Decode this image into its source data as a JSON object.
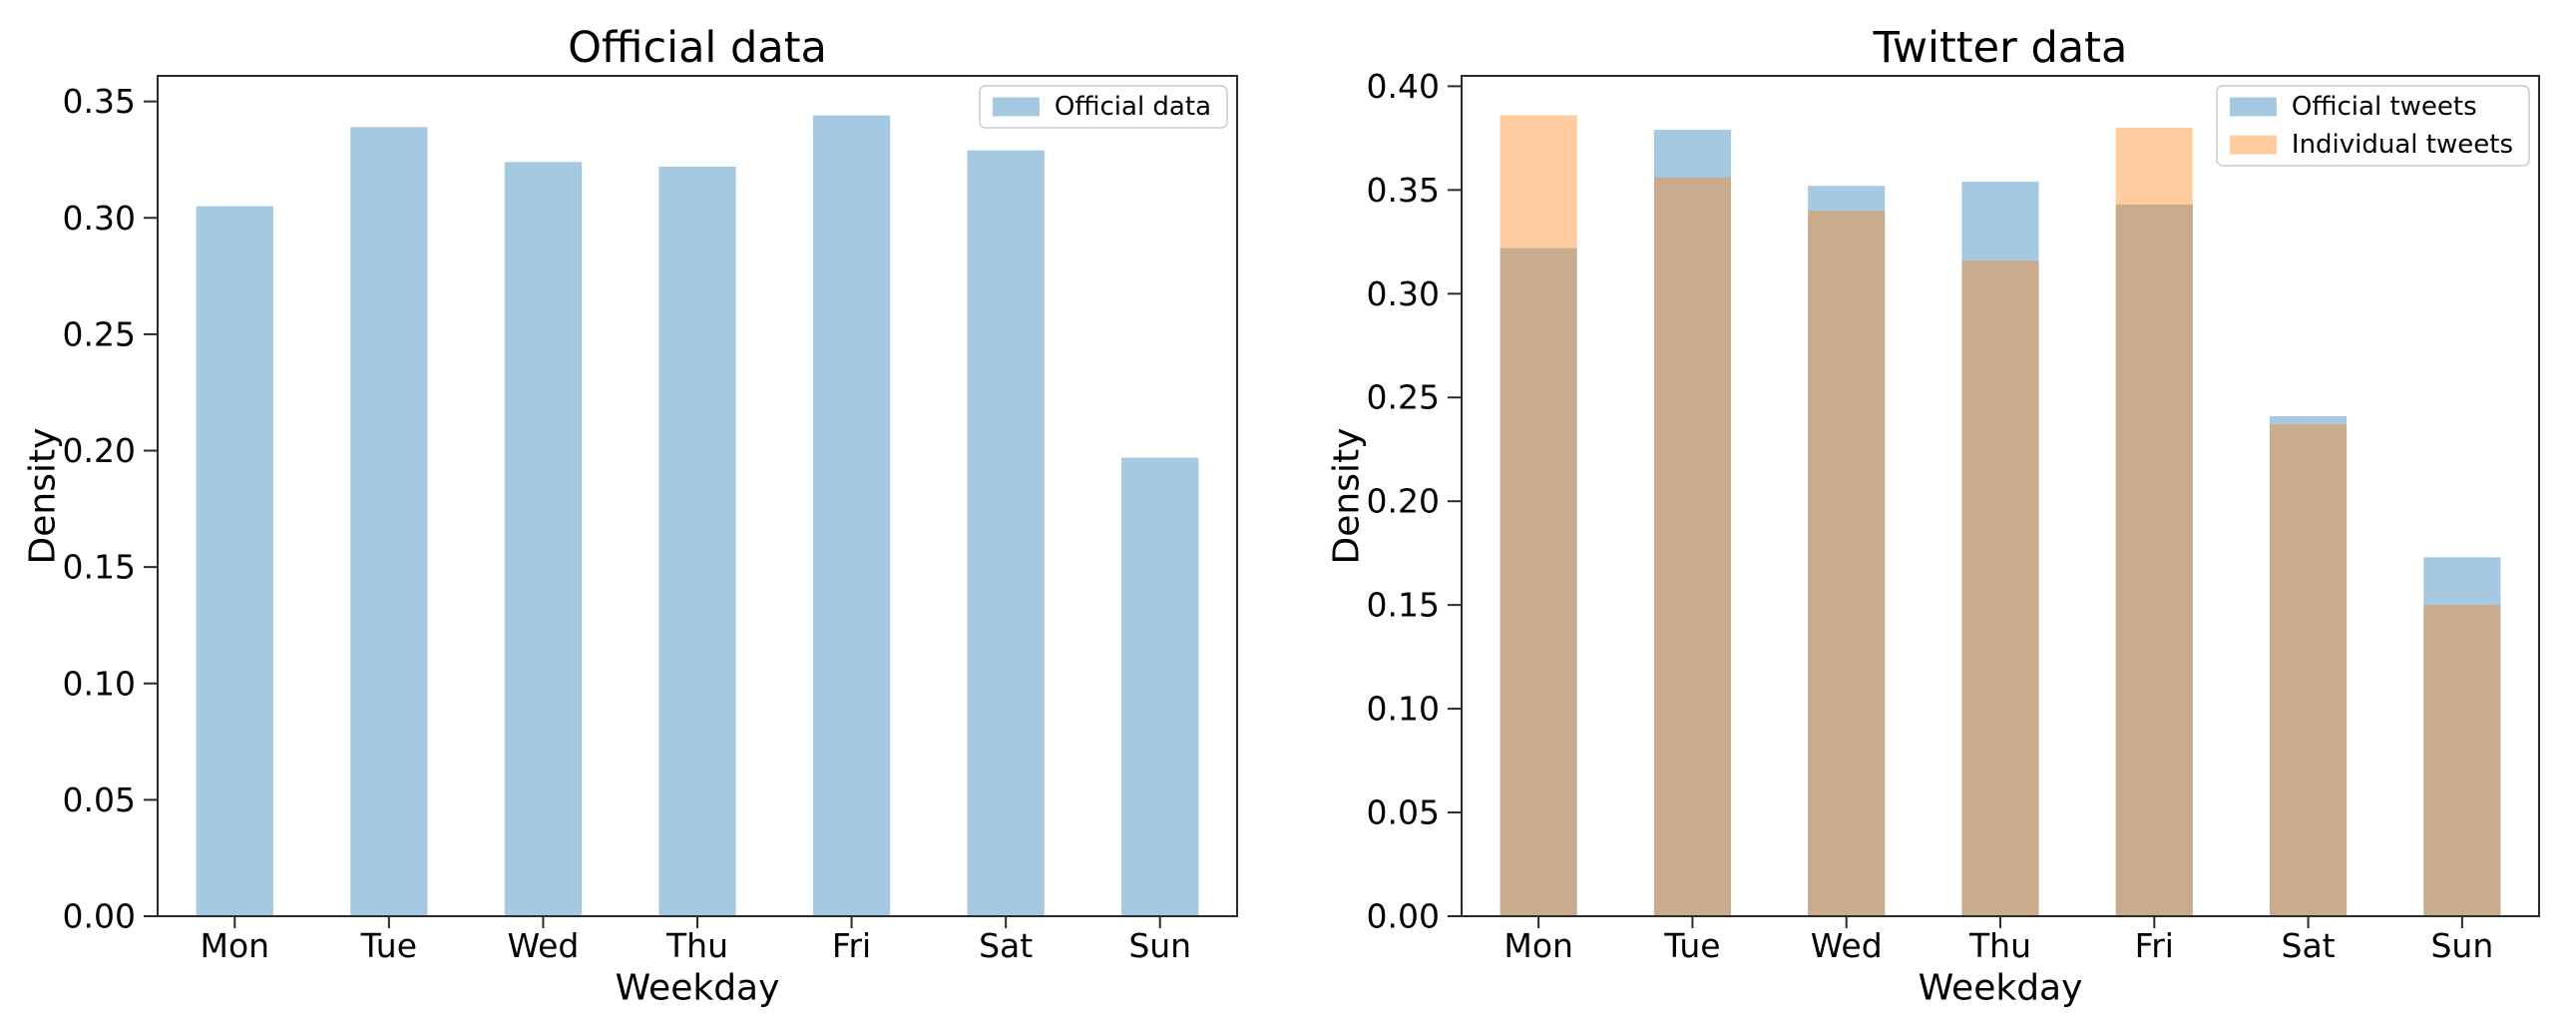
{
  "style": {
    "background": "#ffffff",
    "axis_color": "#2b2b2b",
    "text_color": "#000000",
    "legend_border": "#cccccc",
    "legend_background": "#ffffff",
    "bar_blue": "#1f77b4",
    "bar_orange": "#ff7f0e",
    "bar_alpha": 0.4
  },
  "chart_data": [
    {
      "type": "bar",
      "title": "Official data",
      "xlabel": "Weekday",
      "ylabel": "Density",
      "categories": [
        "Mon",
        "Tue",
        "Wed",
        "Thu",
        "Fri",
        "Sat",
        "Sun"
      ],
      "series": [
        {
          "name": "Official data",
          "color": "#1f77b4",
          "alpha": 0.4,
          "values": [
            0.305,
            0.339,
            0.324,
            0.322,
            0.344,
            0.329,
            0.197
          ]
        }
      ],
      "overlay": false,
      "grid": false,
      "bar_width_fraction": 0.5,
      "ylim": [
        0,
        0.361
      ],
      "yticks": [
        0.0,
        0.05,
        0.1,
        0.15,
        0.2,
        0.25,
        0.3,
        0.35
      ],
      "yticklabels": [
        "0.00",
        "0.05",
        "0.10",
        "0.15",
        "0.20",
        "0.25",
        "0.30",
        "0.35"
      ],
      "legend": {
        "position": "upper right",
        "entries": [
          "Official data"
        ]
      }
    },
    {
      "type": "bar",
      "title": "Twitter data",
      "xlabel": "Weekday",
      "ylabel": "Density",
      "categories": [
        "Mon",
        "Tue",
        "Wed",
        "Thu",
        "Fri",
        "Sat",
        "Sun"
      ],
      "series": [
        {
          "name": "Official tweets",
          "color": "#1f77b4",
          "alpha": 0.4,
          "values": [
            0.322,
            0.379,
            0.352,
            0.354,
            0.343,
            0.241,
            0.173
          ]
        },
        {
          "name": "Individual tweets",
          "color": "#ff7f0e",
          "alpha": 0.4,
          "values": [
            0.386,
            0.356,
            0.34,
            0.316,
            0.38,
            0.237,
            0.15
          ]
        }
      ],
      "overlay": true,
      "grid": false,
      "bar_width_fraction": 0.5,
      "ylim": [
        0,
        0.405
      ],
      "yticks": [
        0.0,
        0.05,
        0.1,
        0.15,
        0.2,
        0.25,
        0.3,
        0.35,
        0.4
      ],
      "yticklabels": [
        "0.00",
        "0.05",
        "0.10",
        "0.15",
        "0.20",
        "0.25",
        "0.30",
        "0.35",
        "0.40"
      ],
      "legend": {
        "position": "upper right",
        "entries": [
          "Official tweets",
          "Individual tweets"
        ]
      }
    }
  ]
}
